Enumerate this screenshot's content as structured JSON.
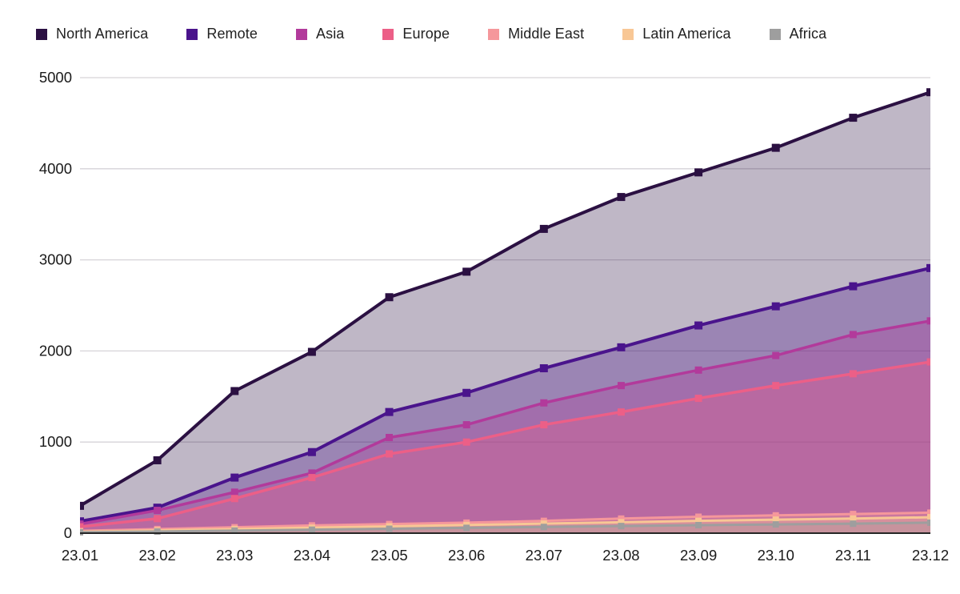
{
  "chart_data": {
    "type": "area",
    "title": "",
    "xlabel": "",
    "ylabel": "",
    "x": [
      "23.01",
      "23.02",
      "23.03",
      "23.04",
      "23.05",
      "23.06",
      "23.07",
      "23.08",
      "23.09",
      "23.10",
      "23.11",
      "23.12"
    ],
    "yticks": [
      0,
      1000,
      2000,
      3000,
      4000,
      5000
    ],
    "ylim": [
      0,
      5000
    ],
    "grid": true,
    "legend_position": "top",
    "fill_opacity": 0.3,
    "series": [
      {
        "name": "North America",
        "color": "#2b1042",
        "values": [
          300,
          800,
          1560,
          1990,
          2590,
          2870,
          3340,
          3690,
          3960,
          4230,
          4560,
          4840
        ]
      },
      {
        "name": "Remote",
        "color": "#4a148c",
        "values": [
          130,
          280,
          610,
          890,
          1330,
          1540,
          1810,
          2040,
          2280,
          2490,
          2710,
          2910
        ]
      },
      {
        "name": "Asia",
        "color": "#b23a9b",
        "values": [
          100,
          250,
          450,
          660,
          1050,
          1190,
          1430,
          1620,
          1790,
          1950,
          2180,
          2330
        ]
      },
      {
        "name": "Europe",
        "color": "#ec5f87",
        "values": [
          70,
          160,
          380,
          610,
          870,
          1000,
          1190,
          1330,
          1480,
          1620,
          1750,
          1880
        ]
      },
      {
        "name": "Middle East",
        "color": "#f5979b",
        "values": [
          25,
          45,
          65,
          85,
          100,
          115,
          135,
          160,
          180,
          195,
          210,
          225
        ]
      },
      {
        "name": "Latin America",
        "color": "#f8c795",
        "values": [
          15,
          30,
          45,
          60,
          75,
          90,
          105,
          120,
          135,
          148,
          160,
          175
        ]
      },
      {
        "name": "Africa",
        "color": "#9e9e9e",
        "values": [
          10,
          18,
          28,
          38,
          48,
          58,
          68,
          78,
          88,
          96,
          104,
          115
        ]
      }
    ],
    "axis_color": "#262626",
    "gridline_color": "#d6d3d8",
    "tick_label_color": "#1a1a1a"
  }
}
